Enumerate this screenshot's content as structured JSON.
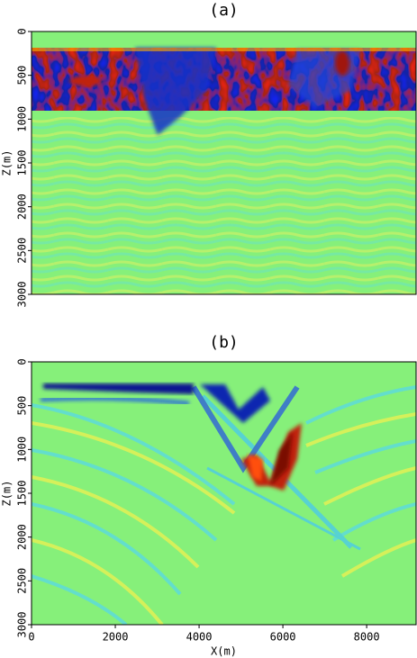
{
  "chart_data": [
    {
      "type": "image",
      "title": "(a)",
      "ylabel": "Z(m)",
      "ylim": [
        0,
        3000
      ],
      "yticks": [
        0,
        500,
        1000,
        1500,
        2000,
        2500,
        3000
      ]
    },
    {
      "type": "image",
      "title": "(b)",
      "ylabel": "Z(m)",
      "xlabel": "X(m)",
      "xlim": [
        0,
        9180
      ],
      "xticks": [
        0,
        2000,
        4000,
        6000,
        8000
      ],
      "ylim": [
        0,
        3000
      ],
      "yticks": [
        0,
        500,
        1000,
        1500,
        2000,
        2500,
        3000
      ]
    }
  ]
}
